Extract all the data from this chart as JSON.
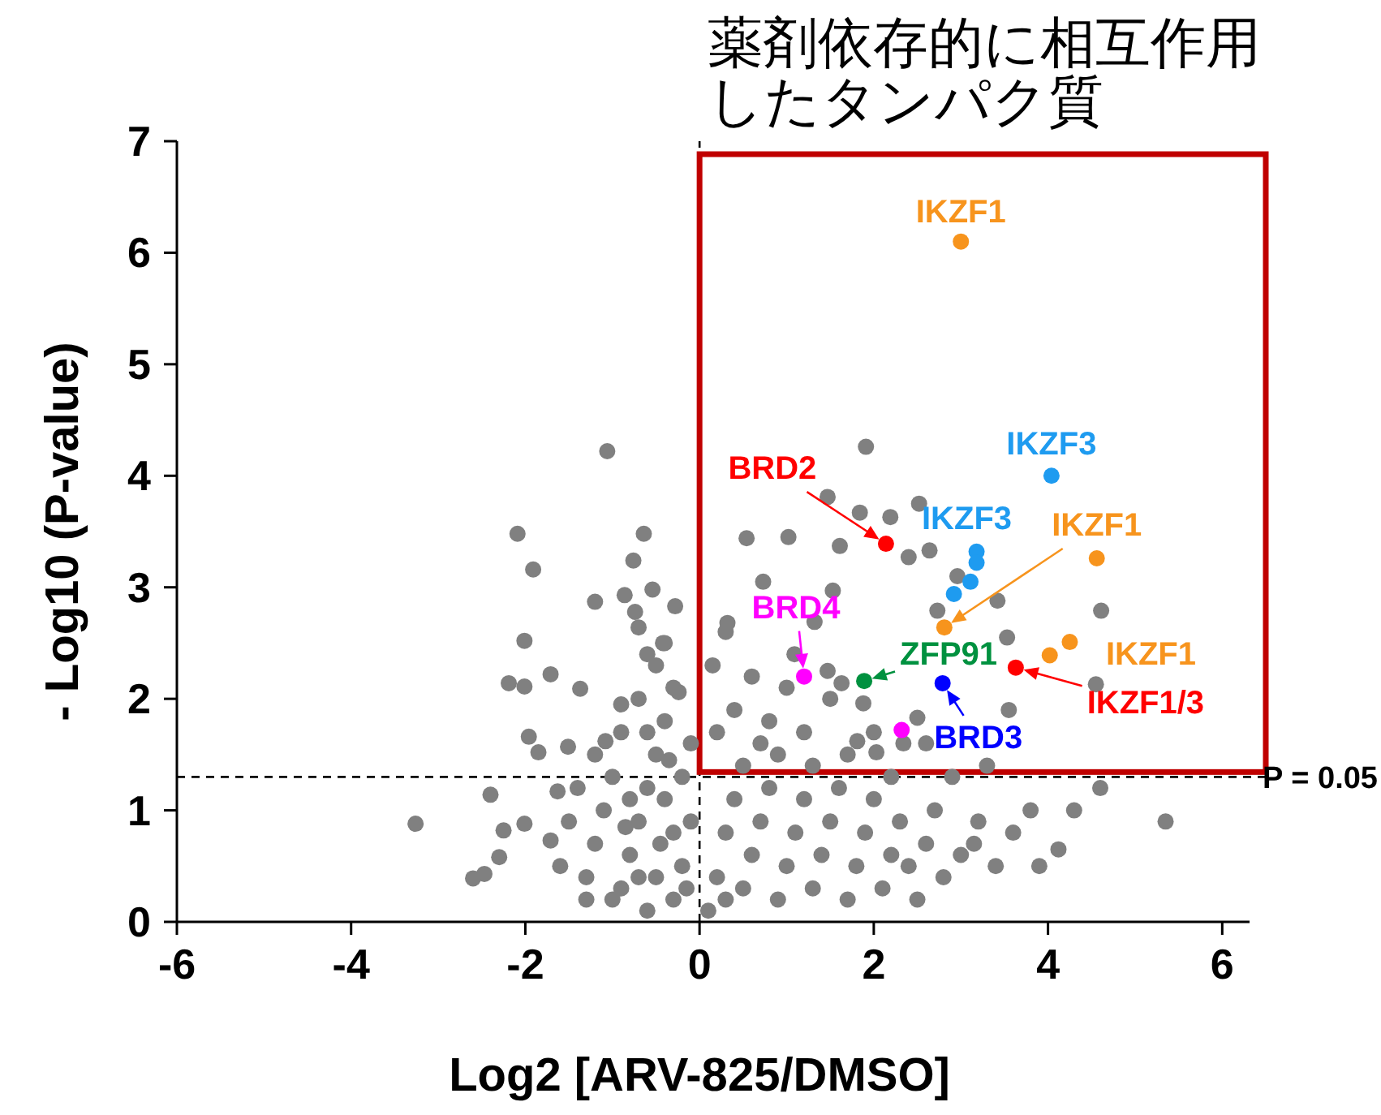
{
  "chart_data": {
    "type": "scatter",
    "title": "薬剤依存的に相互作用したタンパク質",
    "xlabel": "Log2 [ARV-825/DMSO]",
    "ylabel": "- Log10 (P-value)",
    "xlim": [
      -6,
      6.5
    ],
    "ylim": [
      0,
      7
    ],
    "xticks": [
      -6,
      -4,
      -2,
      0,
      2,
      4,
      6
    ],
    "yticks": [
      0,
      1,
      2,
      3,
      4,
      5,
      6,
      7
    ],
    "grid": false,
    "marker": "circle",
    "series": [
      {
        "color": "#808080",
        "x": [
          -1.06,
          -2.09,
          -1.91,
          -1.2,
          -2.01,
          -2.19,
          -2.01,
          -1.71,
          -1.37,
          -1.96,
          -1.85,
          -2.4,
          -3.26,
          -2.25,
          -2.3,
          -2.6,
          -2.47,
          -2.01,
          -1.71,
          -1.63,
          -1.51,
          -1.08,
          -0.9,
          -0.86,
          -0.64,
          -0.76,
          -0.54,
          -0.28,
          -0.74,
          -0.7,
          -0.42,
          -0.24,
          -0.9,
          -0.8,
          -0.7,
          -0.6,
          -0.5,
          -0.4,
          -0.3,
          -0.5,
          -0.7,
          -0.9,
          -1.0,
          -1.1,
          -1.2,
          -1.3,
          -1.0,
          -0.6,
          -0.3,
          -0.2,
          -0.1,
          -0.2,
          -0.1,
          -0.3,
          -0.5,
          -0.8,
          -0.6,
          -0.4,
          -0.7,
          -0.4,
          -0.6,
          -1.2,
          -1.4,
          -1.5,
          -1.3,
          -1.6,
          -0.35,
          -0.15,
          -0.45,
          -0.85,
          0.1,
          0.2,
          0.3,
          0.4,
          0.5,
          0.6,
          0.7,
          0.8,
          0.9,
          1.0,
          1.1,
          1.2,
          1.3,
          1.4,
          1.5,
          1.6,
          1.7,
          1.8,
          1.9,
          2.0,
          2.1,
          2.2,
          2.3,
          2.4,
          2.5,
          2.6,
          2.7,
          2.8,
          3.0,
          3.2,
          3.4,
          3.6,
          3.8,
          0.3,
          0.5,
          0.9,
          1.3,
          1.7,
          2.2,
          2.9,
          0.2,
          0.4,
          0.15,
          0.3,
          0.8,
          1.0,
          0.6,
          0.7,
          1.2,
          1.5,
          2.0,
          2.6,
          3.3,
          4.12,
          5.35,
          3.15,
          4.3,
          3.9,
          4.6,
          1.91,
          1.47,
          1.84,
          2.19,
          2.52,
          0.54,
          1.02,
          1.61,
          2.4,
          2.64,
          4.61,
          4.55,
          3.55,
          3.42,
          2.96,
          2.73,
          3.53,
          0.73,
          1.53,
          1.32,
          1.09,
          0.32,
          1.47,
          1.63,
          1.88,
          2.5,
          2.34,
          2.03,
          1.81
        ],
        "values": [
          4.22,
          3.48,
          3.16,
          2.87,
          2.52,
          2.14,
          2.11,
          2.22,
          2.09,
          1.66,
          1.52,
          1.14,
          0.88,
          0.82,
          0.58,
          0.39,
          0.43,
          0.88,
          0.73,
          1.17,
          1.57,
          1.62,
          1.95,
          2.93,
          3.48,
          3.24,
          2.98,
          2.83,
          2.78,
          2.64,
          2.5,
          2.06,
          0.3,
          0.6,
          0.9,
          1.2,
          1.5,
          1.8,
          2.1,
          2.3,
          2.0,
          1.7,
          1.3,
          1.0,
          0.7,
          0.4,
          0.2,
          0.1,
          0.2,
          0.5,
          0.9,
          1.3,
          1.6,
          0.8,
          0.4,
          1.1,
          1.7,
          1.1,
          0.4,
          2.5,
          2.4,
          1.5,
          1.2,
          0.9,
          0.2,
          0.5,
          1.45,
          0.3,
          0.7,
          0.85,
          0.1,
          0.4,
          0.8,
          1.1,
          0.3,
          0.6,
          0.9,
          1.2,
          0.2,
          0.5,
          0.8,
          1.1,
          0.3,
          0.6,
          0.9,
          1.2,
          0.2,
          0.5,
          0.8,
          1.1,
          0.3,
          0.6,
          0.9,
          0.5,
          0.2,
          0.7,
          1.0,
          0.4,
          0.6,
          0.9,
          0.5,
          0.8,
          1.0,
          0.2,
          1.4,
          1.5,
          1.4,
          1.5,
          1.3,
          1.3,
          1.7,
          1.9,
          2.3,
          2.6,
          1.8,
          2.1,
          2.2,
          1.6,
          1.7,
          2.0,
          1.7,
          1.6,
          1.4,
          0.65,
          0.9,
          0.7,
          1.0,
          0.5,
          1.2,
          4.26,
          3.81,
          3.67,
          3.63,
          3.75,
          3.44,
          3.45,
          3.37,
          3.27,
          3.33,
          2.79,
          2.13,
          1.9,
          2.88,
          3.1,
          2.79,
          2.55,
          3.05,
          2.97,
          2.69,
          2.4,
          2.68,
          2.25,
          2.14,
          1.96,
          1.83,
          1.6,
          1.52,
          1.62
        ]
      },
      {
        "color": "#f7941d",
        "x": [
          3.0,
          4.56,
          2.81,
          4.02,
          4.25
        ],
        "values": [
          6.1,
          3.26,
          2.64,
          2.39,
          2.51
        ]
      },
      {
        "color": "#1e9bf0",
        "x": [
          4.04,
          3.18,
          3.18,
          3.11,
          2.92
        ],
        "values": [
          4.0,
          3.32,
          3.22,
          3.05,
          2.94
        ]
      },
      {
        "color": "#ff0000",
        "x": [
          2.14,
          3.63
        ],
        "values": [
          3.39,
          2.28
        ]
      },
      {
        "color": "#ff00ff",
        "x": [
          1.2,
          2.32
        ],
        "values": [
          2.2,
          1.72
        ]
      },
      {
        "color": "#00913f",
        "x": [
          1.89
        ],
        "values": [
          2.16
        ]
      },
      {
        "color": "#0000ff",
        "x": [
          2.79
        ],
        "values": [
          2.14
        ]
      }
    ],
    "annotations": [
      {
        "text": "IKZF1",
        "x": 3.0,
        "y": 6.1
      },
      {
        "text": "IKZF3",
        "x": 4.04,
        "y": 4.0
      },
      {
        "text": "BRD2",
        "x": 2.14,
        "y": 3.39
      },
      {
        "text": "IKZF3",
        "x": 3.18,
        "y": 3.32
      },
      {
        "text": "IKZF1",
        "x": 4.56,
        "y": 3.26
      },
      {
        "text": "BRD4",
        "x": 1.2,
        "y": 2.2
      },
      {
        "text": "ZFP91",
        "x": 1.89,
        "y": 2.16
      },
      {
        "text": "BRD3",
        "x": 2.79,
        "y": 2.14
      },
      {
        "text": "IKZF1",
        "x": 4.25,
        "y": 2.51
      },
      {
        "text": "IKZF1/3",
        "x": 3.63,
        "y": 2.28
      },
      "P = 0.05"
    ],
    "ref_lines": [
      {
        "axis": "y",
        "value": 1.3,
        "line_style": "dashed",
        "color": "#000000"
      },
      {
        "axis": "x",
        "value": 0,
        "line_style": "dashed",
        "color": "#000000"
      }
    ]
  }
}
